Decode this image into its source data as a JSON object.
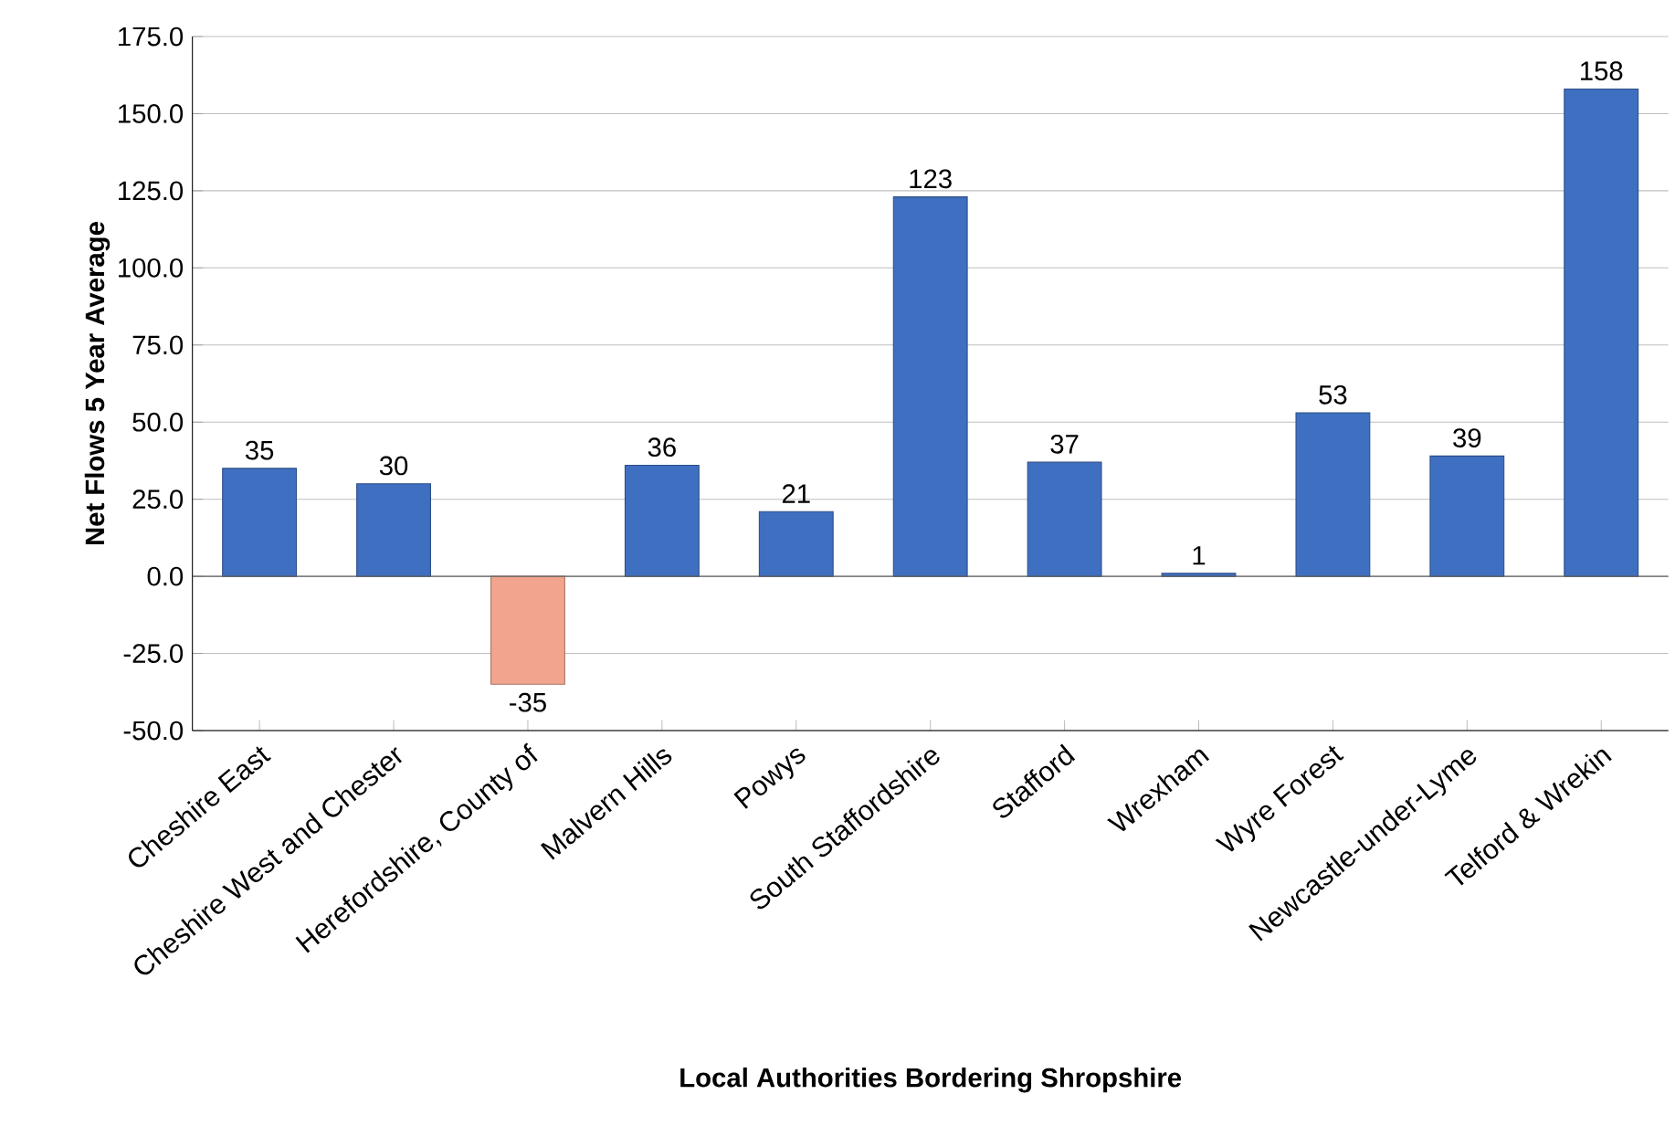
{
  "chart_data": {
    "type": "bar",
    "xlabel": "Local Authorities Bordering Shropshire",
    "ylabel": "Net Flows 5 Year Average",
    "categories": [
      "Cheshire East",
      "Cheshire West and Chester",
      "Herefordshire, County of",
      "Malvern Hills",
      "Powys",
      "South Staffordshire",
      "Stafford",
      "Wrexham",
      "Wyre Forest",
      "Newcastle-under-Lyme",
      "Telford & Wrekin"
    ],
    "values": [
      35,
      30,
      -35,
      36,
      21,
      123,
      37,
      1,
      53,
      39,
      158
    ],
    "colors": [
      "#3f6fc0",
      "#3f6fc0",
      "#f2a58e",
      "#3f6fc0",
      "#3f6fc0",
      "#3f6fc0",
      "#3f6fc0",
      "#3f6fc0",
      "#3f6fc0",
      "#3f6fc0",
      "#3f6fc0"
    ],
    "ylim": [
      -50,
      175
    ],
    "yticks": [
      {
        "value": -50,
        "label": "-50.0"
      },
      {
        "value": -25,
        "label": "-25.0"
      },
      {
        "value": 0,
        "label": "0.0"
      },
      {
        "value": 25,
        "label": "25.0"
      },
      {
        "value": 50,
        "label": "50.0"
      },
      {
        "value": 75,
        "label": "75.0"
      },
      {
        "value": 100,
        "label": "100.0"
      },
      {
        "value": 125,
        "label": "125.0"
      },
      {
        "value": 150,
        "label": "150.0"
      },
      {
        "value": 175,
        "label": "175.0"
      }
    ],
    "grid": "y",
    "data_labels": true
  }
}
